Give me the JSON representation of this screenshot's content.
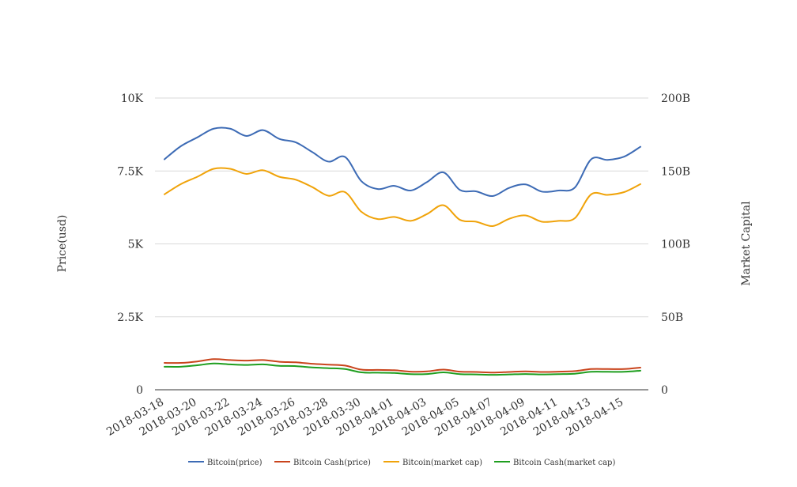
{
  "chart_data": {
    "type": "line",
    "title": "",
    "x": [
      "2018-03-18",
      "2018-03-19",
      "2018-03-20",
      "2018-03-21",
      "2018-03-22",
      "2018-03-23",
      "2018-03-24",
      "2018-03-25",
      "2018-03-26",
      "2018-03-27",
      "2018-03-28",
      "2018-03-29",
      "2018-03-30",
      "2018-03-31",
      "2018-04-01",
      "2018-04-02",
      "2018-04-03",
      "2018-04-04",
      "2018-04-05",
      "2018-04-06",
      "2018-04-07",
      "2018-04-08",
      "2018-04-09",
      "2018-04-10",
      "2018-04-11",
      "2018-04-12",
      "2018-04-13",
      "2018-04-14",
      "2018-04-15",
      "2018-04-16"
    ],
    "x_tick_labels": [
      "2018-03-18",
      "2018-03-20",
      "2018-03-22",
      "2018-03-24",
      "2018-03-26",
      "2018-03-28",
      "2018-03-30",
      "2018-04-01",
      "2018-04-03",
      "2018-04-05",
      "2018-04-07",
      "2018-04-09",
      "2018-04-11",
      "2018-04-13",
      "2018-04-15"
    ],
    "y_left": {
      "label": "Price(usd)",
      "range": [
        0,
        10000
      ],
      "ticks": [
        0,
        2500,
        5000,
        7500,
        10000
      ],
      "tick_labels": [
        "0",
        "2.5K",
        "5K",
        "7.5K",
        "10K"
      ]
    },
    "y_right": {
      "label": "Market Capital",
      "range": [
        0,
        200000000000
      ],
      "ticks": [
        0,
        50000000000,
        100000000000,
        150000000000,
        200000000000
      ],
      "tick_labels": [
        "0",
        "50B",
        "100B",
        "150B",
        "200B"
      ]
    },
    "grid": true,
    "legend_position": "bottom",
    "series": [
      {
        "name": "Bitcoin(price)",
        "axis": "left",
        "color": "#3d6bb5",
        "values": [
          7900,
          8350,
          8650,
          8950,
          8950,
          8700,
          8900,
          8600,
          8480,
          8150,
          7820,
          7980,
          7150,
          6880,
          6990,
          6830,
          7120,
          7450,
          6850,
          6800,
          6640,
          6920,
          7040,
          6790,
          6830,
          6930,
          7900,
          7880,
          7990,
          8330
        ]
      },
      {
        "name": "Bitcoin Cash(price)",
        "axis": "left",
        "color": "#c9441c",
        "values": [
          920,
          920,
          970,
          1050,
          1020,
          1000,
          1020,
          960,
          940,
          890,
          860,
          830,
          690,
          680,
          670,
          620,
          630,
          690,
          620,
          610,
          590,
          610,
          630,
          610,
          620,
          640,
          710,
          710,
          710,
          760
        ]
      },
      {
        "name": "Bitcoin(market cap)",
        "axis": "right",
        "color": "#f0a30a",
        "values": [
          134000000000,
          141000000000,
          146000000000,
          151500000000,
          151500000000,
          148000000000,
          150500000000,
          146000000000,
          144000000000,
          139000000000,
          133000000000,
          135500000000,
          122000000000,
          117000000000,
          118500000000,
          115800000000,
          120500000000,
          126500000000,
          116500000000,
          115200000000,
          112200000000,
          117200000000,
          119500000000,
          115200000000,
          115800000000,
          117600000000,
          134000000000,
          133600000000,
          135500000000,
          141000000000
        ]
      },
      {
        "name": "Bitcoin Cash(market cap)",
        "axis": "right",
        "color": "#1f9e1f",
        "values": [
          15800000000,
          15800000000,
          16800000000,
          18000000000,
          17400000000,
          17000000000,
          17400000000,
          16400000000,
          16200000000,
          15300000000,
          14800000000,
          14200000000,
          11900000000,
          11700000000,
          11500000000,
          10700000000,
          10800000000,
          11900000000,
          10700000000,
          10500000000,
          10200000000,
          10500000000,
          10800000000,
          10500000000,
          10700000000,
          11000000000,
          12300000000,
          12300000000,
          12300000000,
          13100000000
        ]
      }
    ]
  }
}
